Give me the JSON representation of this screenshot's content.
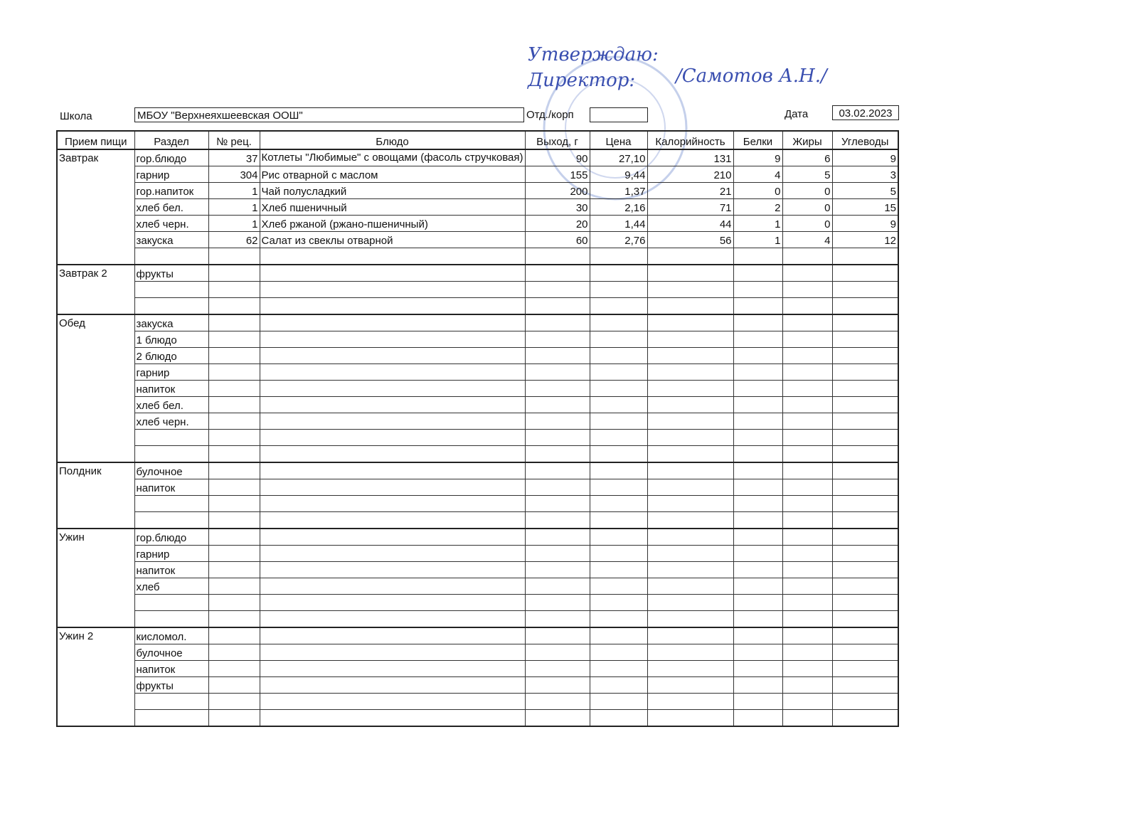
{
  "approval": {
    "line1": "Утверждаю:",
    "line2": "Директор:",
    "signer": "/Самотов А.Н./"
  },
  "header": {
    "school_label": "Школа",
    "school": "МБОУ \"Верхнеяхшеевская ООШ\"",
    "dept_label": "Отд./корп",
    "date_label": "Дата",
    "date": "03.02.2023"
  },
  "table": {
    "columns": [
      "Прием пищи",
      "Раздел",
      "№ рец.",
      "Блюдо",
      "Выход, г",
      "Цена",
      "Калорийность",
      "Белки",
      "Жиры",
      "Углеводы"
    ],
    "groups": [
      {
        "meal": "Завтрак",
        "rows": [
          [
            "гор.блюдо",
            37,
            "Котлеты \"Любимые\" с овощами (фасоль стручковая)",
            90,
            "27,10",
            131,
            9,
            6,
            9
          ],
          [
            "гарнир",
            304,
            "Рис отварной с маслом",
            155,
            "9,44",
            210,
            4,
            5,
            3
          ],
          [
            "гор.напиток",
            1,
            "Чай полусладкий",
            200,
            "1,37",
            21,
            0,
            0,
            5
          ],
          [
            "хлеб бел.",
            1,
            "Хлеб пшеничный",
            30,
            "2,16",
            71,
            2,
            0,
            15
          ],
          [
            "хлеб черн.",
            1,
            "Хлеб ржаной (ржано-пшеничный)",
            20,
            "1,44",
            44,
            1,
            0,
            9
          ],
          [
            "закуска",
            62,
            "Салат из свеклы отварной",
            60,
            "2,76",
            56,
            1,
            4,
            12
          ],
          []
        ]
      },
      {
        "meal": "Завтрак 2",
        "rows": [
          [
            "фрукты"
          ],
          [],
          []
        ]
      },
      {
        "meal": "Обед",
        "rows": [
          [
            "закуска"
          ],
          [
            "1 блюдо"
          ],
          [
            "2 блюдо"
          ],
          [
            "гарнир"
          ],
          [
            "напиток"
          ],
          [
            "хлеб бел."
          ],
          [
            "хлеб черн."
          ],
          [],
          []
        ]
      },
      {
        "meal": "Полдник",
        "rows": [
          [
            "булочное"
          ],
          [
            "напиток"
          ],
          [],
          []
        ]
      },
      {
        "meal": "Ужин",
        "rows": [
          [
            "гор.блюдо"
          ],
          [
            "гарнир"
          ],
          [
            "напиток"
          ],
          [
            "хлеб"
          ],
          [],
          []
        ]
      },
      {
        "meal": "Ужин 2",
        "rows": [
          [
            "кисломол."
          ],
          [
            "булочное"
          ],
          [
            "напиток"
          ],
          [
            "фрукты"
          ],
          [],
          []
        ]
      }
    ]
  }
}
